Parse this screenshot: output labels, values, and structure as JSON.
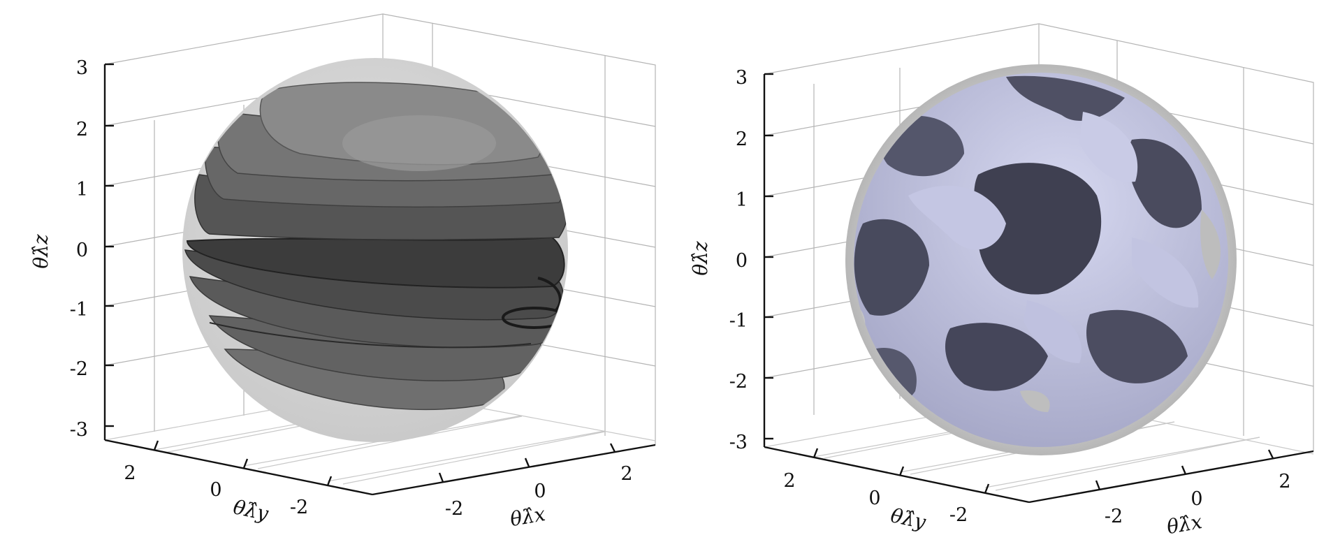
{
  "chart_data": [
    {
      "type": "surface",
      "panel": "left",
      "xlabel": "θλ̂x",
      "ylabel": "θλ̂y",
      "zlabel": "θλ̂z",
      "xlim": [
        -3,
        3
      ],
      "ylim": [
        -3,
        3
      ],
      "zlim": [
        -3,
        3
      ],
      "x_ticks": [
        "-2",
        "0",
        "2"
      ],
      "y_ticks": [
        "2",
        "0",
        "-2"
      ],
      "z_ticks": [
        "3",
        "2",
        "1",
        "0",
        "-1",
        "-2",
        "-3"
      ],
      "grid": true,
      "sphere_radius": 3.14,
      "surface_style": "stacked gray helical bands inside translucent sphere",
      "colors": {
        "sphere": "#d4d4d4",
        "band_light": "#8c8c8c",
        "band_dark": "#3c3c3c"
      }
    },
    {
      "type": "surface",
      "panel": "right",
      "xlabel": "θλ̂x",
      "ylabel": "θλ̂y",
      "zlabel": "θλ̂z",
      "xlim": [
        -3,
        3
      ],
      "ylim": [
        -3,
        3
      ],
      "zlim": [
        -3,
        3
      ],
      "x_ticks": [
        "-2",
        "0",
        "2"
      ],
      "y_ticks": [
        "2",
        "0",
        "-2"
      ],
      "z_ticks": [
        "3",
        "2",
        "1",
        "0",
        "-1",
        "-2",
        "-3"
      ],
      "grid": true,
      "sphere_radius": 3.14,
      "surface_style": "lavender gyroid-like porous surface inside translucent sphere",
      "colors": {
        "sphere": "#c0c0c0",
        "surface_light": "#b8badb",
        "surface_dark": "#4a4b5a"
      }
    }
  ]
}
